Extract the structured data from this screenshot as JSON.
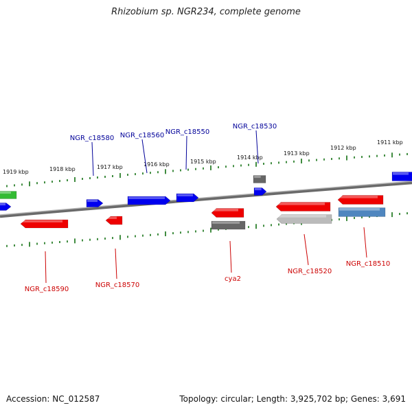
{
  "title": "Rhizobium sp. NGR234, complete genome",
  "footer": {
    "accession": "Accession: NC_012587",
    "stats": "Topology: circular; Length: 3,925,702 bp; Genes: 3,691"
  },
  "colors": {
    "forward_gene": "#0000ee",
    "reverse_gene": "#ee0000",
    "label_forward": "#000099",
    "label_reverse": "#cc0000",
    "backbone": "#888888",
    "tick": "#006600",
    "green_gene": "#33bb33",
    "dark_gray_gene": "#666666",
    "light_gray_gene": "#bbbbbb",
    "steel_blue_gene": "#4f86bf"
  },
  "kbp_ticks": [
    "1919 kbp",
    "1918 kbp",
    "1917 kbp",
    "1916 kbp",
    "1915 kbp",
    "1914 kbp",
    "1913 kbp",
    "1912 kbp",
    "1911 kbp"
  ],
  "top_labels": [
    {
      "text": "NGR_c18580"
    },
    {
      "text": "NGR_c18560"
    },
    {
      "text": "NGR_c18550"
    },
    {
      "text": "NGR_c18530"
    }
  ],
  "bottom_labels": [
    {
      "text": "NGR_c18590"
    },
    {
      "text": "NGR_c18570"
    },
    {
      "text": "cya2"
    },
    {
      "text": "NGR_c18520"
    },
    {
      "text": "NGR_c18510"
    }
  ]
}
